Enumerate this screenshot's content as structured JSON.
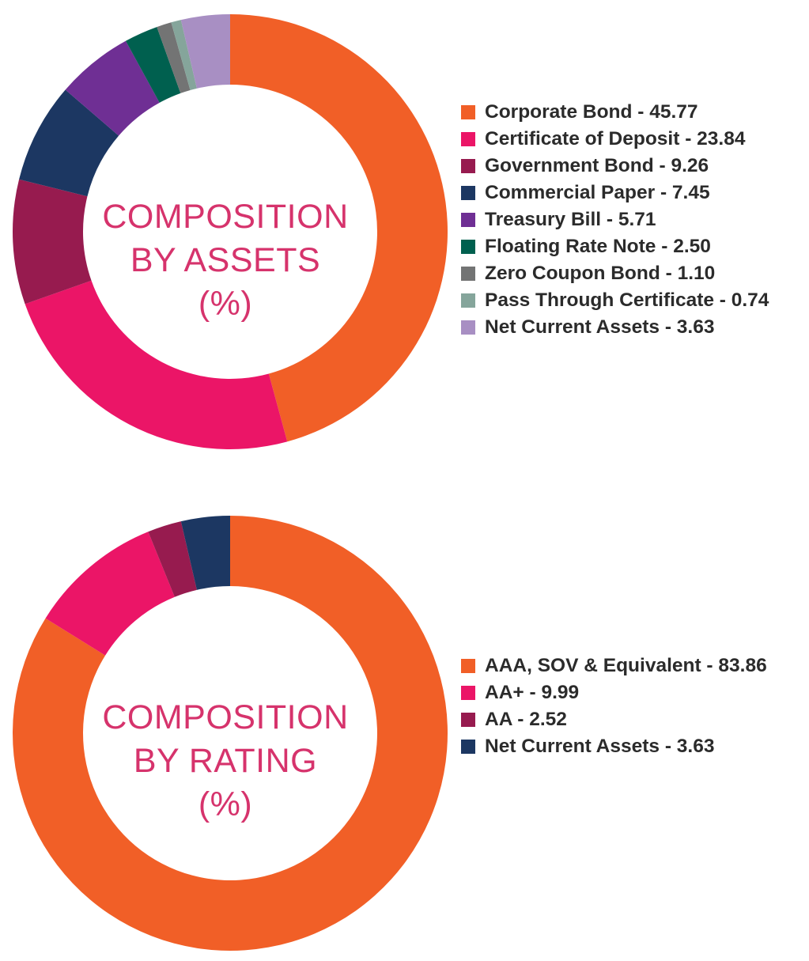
{
  "colors": {
    "orange": "#f15f27",
    "pink": "#eb1567",
    "maroon": "#971b4f",
    "navy": "#1c3762",
    "purple": "#6f2f94",
    "teal": "#00604f",
    "gray": "#737474",
    "sage": "#85a59b",
    "lavender": "#a88fc3",
    "label": "#d6336c",
    "text": "#2b2b2b"
  },
  "chart_data": [
    {
      "type": "pie",
      "variant": "donut",
      "center_label": [
        "COMPOSITION",
        "BY ASSETS",
        "(%)"
      ],
      "slices": [
        {
          "label": "Corporate Bond",
          "value": 45.77,
          "legend_text": "Corporate Bond - 45.77",
          "color": "#f15f27"
        },
        {
          "label": "Certificate of Deposit",
          "value": 23.84,
          "legend_text": "Certificate of Deposit - 23.84",
          "color": "#eb1567"
        },
        {
          "label": "Government Bond",
          "value": 9.26,
          "legend_text": "Government Bond - 9.26",
          "color": "#971b4f"
        },
        {
          "label": "Commercial Paper",
          "value": 7.45,
          "legend_text": "Commercial Paper - 7.45",
          "color": "#1c3762"
        },
        {
          "label": "Treasury Bill",
          "value": 5.71,
          "legend_text": "Treasury Bill - 5.71",
          "color": "#6f2f94"
        },
        {
          "label": "Floating Rate Note",
          "value": 2.5,
          "legend_text": "Floating Rate Note - 2.50",
          "color": "#00604f"
        },
        {
          "label": "Zero Coupon Bond",
          "value": 1.1,
          "legend_text": "Zero Coupon Bond - 1.10",
          "color": "#737474"
        },
        {
          "label": "Pass Through Certificate",
          "value": 0.74,
          "legend_text": "Pass Through Certificate - 0.74",
          "color": "#85a59b"
        },
        {
          "label": "Net Current Assets",
          "value": 3.63,
          "legend_text": "Net Current Assets - 3.63",
          "color": "#a88fc3"
        }
      ],
      "start_angle": "12 o'clock",
      "direction": "clockwise",
      "legend_position": "right"
    },
    {
      "type": "pie",
      "variant": "donut",
      "center_label": [
        "COMPOSITION",
        "BY RATING",
        "(%)"
      ],
      "slices": [
        {
          "label": "AAA, SOV & Equivalent",
          "value": 83.86,
          "legend_text": "AAA, SOV & Equivalent - 83.86",
          "color": "#f15f27"
        },
        {
          "label": "AA+",
          "value": 9.99,
          "legend_text": "AA+ - 9.99",
          "color": "#eb1567"
        },
        {
          "label": "AA",
          "value": 2.52,
          "legend_text": "AA - 2.52",
          "color": "#971b4f"
        },
        {
          "label": "Net Current Assets",
          "value": 3.63,
          "legend_text": "Net Current Assets - 3.63",
          "color": "#1c3762"
        }
      ],
      "start_angle": "12 o'clock",
      "direction": "clockwise",
      "legend_position": "right"
    }
  ]
}
